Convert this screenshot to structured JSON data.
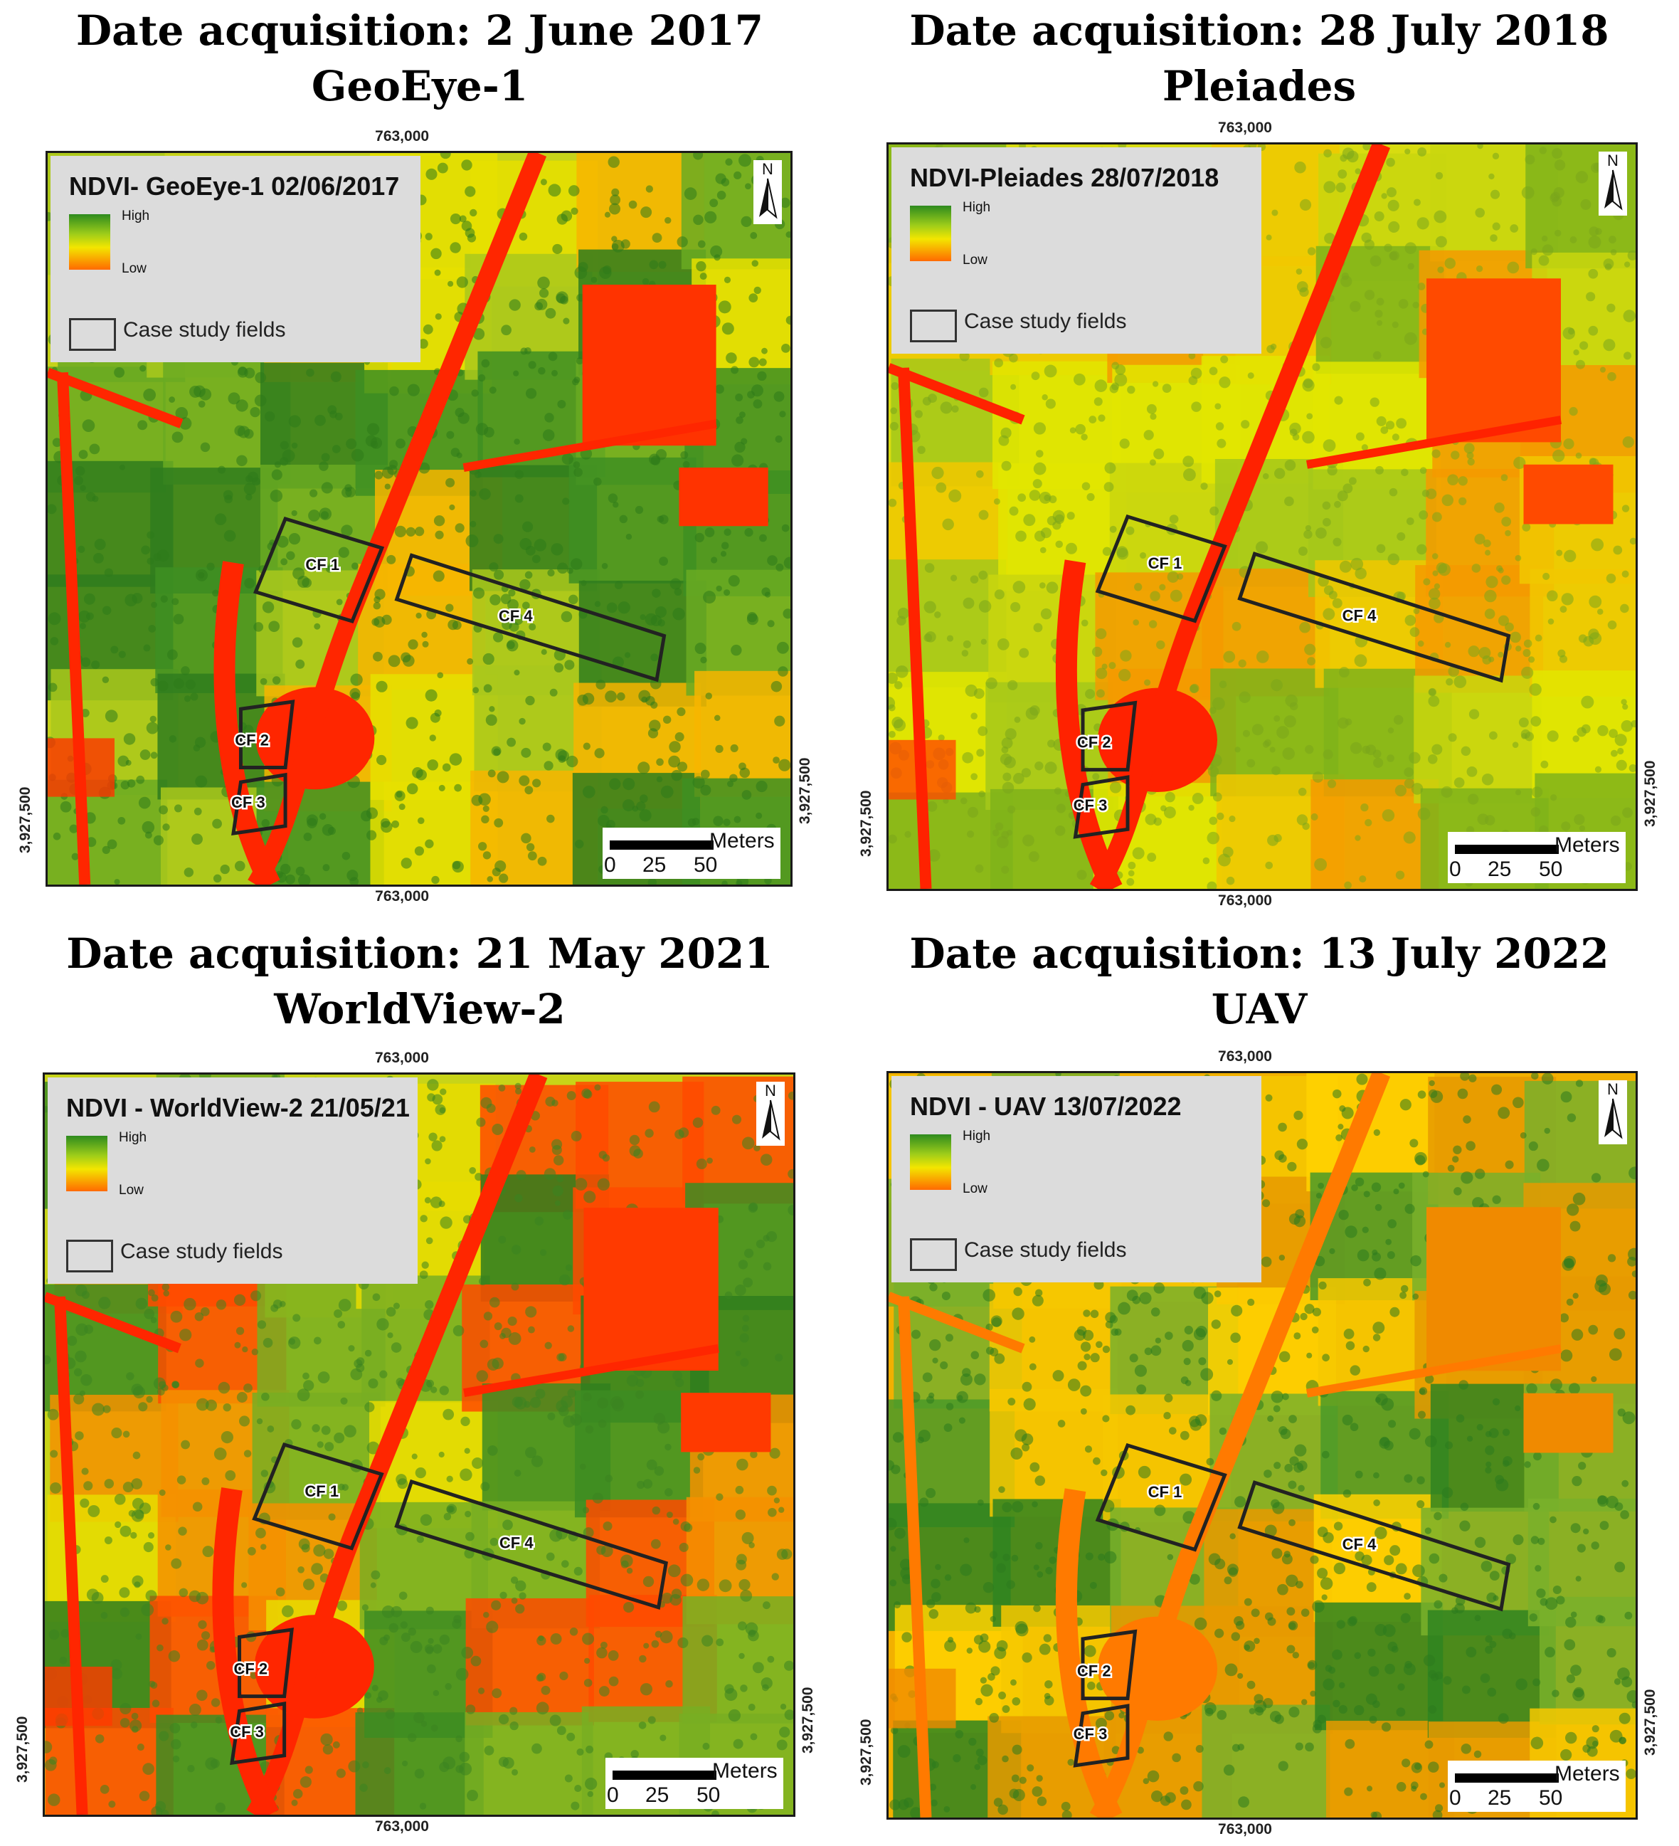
{
  "panels": [
    {
      "title_line1": "Date acquisition: 2 June 2017",
      "title_line2": "GeoEye-1",
      "legend_title": "NDVI- GeoEye-1 02/06/2017",
      "theme": "geoeye",
      "coord_top": "763,000",
      "coord_bottom": "763,000",
      "coord_left": "3,927,500",
      "coord_right": "3,927,500"
    },
    {
      "title_line1": "Date acquisition: 28 July 2018",
      "title_line2": "Pleiades",
      "legend_title": "NDVI-Pleiades 28/07/2018",
      "theme": "pleiades",
      "coord_top": "763,000",
      "coord_bottom": "763,000",
      "coord_left": "3,927,500",
      "coord_right": "3,927,500"
    },
    {
      "title_line1": "Date acquisition: 21 May 2021",
      "title_line2": "WorldView-2",
      "legend_title": "NDVI - WorldView-2  21/05/21",
      "theme": "worldview",
      "coord_top": "763,000",
      "coord_bottom": "763,000",
      "coord_left": "3,927,500",
      "coord_right": "3,927,500"
    },
    {
      "title_line1": "Date acquisition: 13 July 2022",
      "title_line2": "UAV",
      "legend_title": "NDVI - UAV  13/07/2022",
      "theme": "uav",
      "coord_top": "763,000",
      "coord_bottom": "763,000",
      "coord_left": "3,927,500",
      "coord_right": "3,927,500"
    }
  ],
  "legend": {
    "high": "High",
    "low": "Low",
    "case_study": "Case study fields"
  },
  "north": "N",
  "scale": {
    "unit": "Meters",
    "ticks": [
      "0",
      "25",
      "50"
    ]
  },
  "fields": [
    "CF 1",
    "CF 2",
    "CF 3",
    "CF 4"
  ],
  "colors": {
    "high": "#2e8b1e",
    "mid": "#f3e600",
    "low": "#ff3300",
    "outline": "#222222"
  }
}
